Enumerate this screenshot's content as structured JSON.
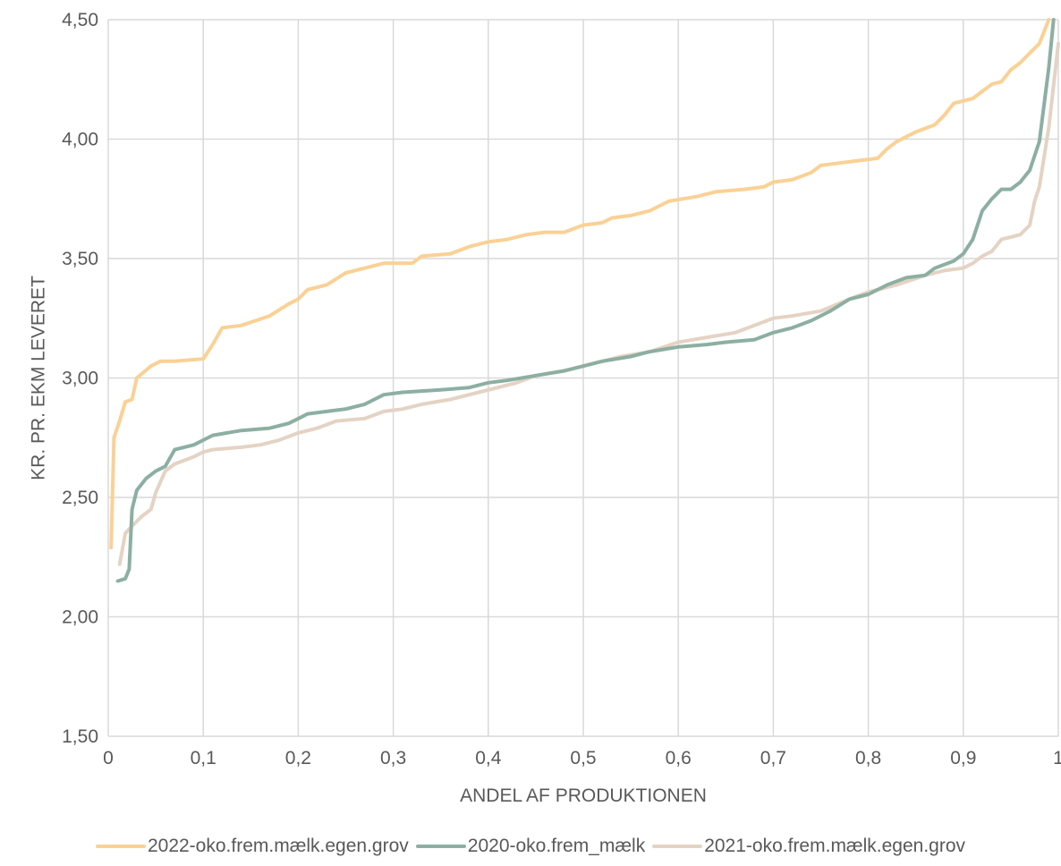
{
  "chart_data": {
    "type": "line",
    "title": "",
    "xlabel": "ANDEL AF PRODUKTIONEN",
    "ylabel": "KR. PR. EKM LEVERET",
    "xlim": [
      0,
      1
    ],
    "ylim": [
      1.5,
      4.5
    ],
    "x_ticks": [
      "0",
      "0,1",
      "0,2",
      "0,3",
      "0,4",
      "0,5",
      "0,6",
      "0,7",
      "0,8",
      "0,9",
      "1"
    ],
    "y_ticks": [
      "1,50",
      "2,00",
      "2,50",
      "3,00",
      "3,50",
      "4,00",
      "4,50"
    ],
    "grid": true,
    "legend_position": "bottom",
    "series": [
      {
        "name": "2022-oko.frem.mælk.egen.grov",
        "color": "#FAD195",
        "points": [
          [
            0.003,
            2.29
          ],
          [
            0.006,
            2.75
          ],
          [
            0.012,
            2.82
          ],
          [
            0.018,
            2.9
          ],
          [
            0.025,
            2.91
          ],
          [
            0.03,
            3.0
          ],
          [
            0.045,
            3.05
          ],
          [
            0.055,
            3.07
          ],
          [
            0.07,
            3.07
          ],
          [
            0.1,
            3.08
          ],
          [
            0.11,
            3.14
          ],
          [
            0.12,
            3.21
          ],
          [
            0.14,
            3.22
          ],
          [
            0.17,
            3.26
          ],
          [
            0.19,
            3.31
          ],
          [
            0.2,
            3.33
          ],
          [
            0.21,
            3.37
          ],
          [
            0.23,
            3.39
          ],
          [
            0.25,
            3.44
          ],
          [
            0.27,
            3.46
          ],
          [
            0.29,
            3.48
          ],
          [
            0.32,
            3.48
          ],
          [
            0.33,
            3.51
          ],
          [
            0.36,
            3.52
          ],
          [
            0.38,
            3.55
          ],
          [
            0.4,
            3.57
          ],
          [
            0.42,
            3.58
          ],
          [
            0.44,
            3.6
          ],
          [
            0.46,
            3.61
          ],
          [
            0.48,
            3.61
          ],
          [
            0.5,
            3.64
          ],
          [
            0.52,
            3.65
          ],
          [
            0.53,
            3.67
          ],
          [
            0.55,
            3.68
          ],
          [
            0.57,
            3.7
          ],
          [
            0.59,
            3.74
          ],
          [
            0.62,
            3.76
          ],
          [
            0.64,
            3.78
          ],
          [
            0.67,
            3.79
          ],
          [
            0.69,
            3.8
          ],
          [
            0.7,
            3.82
          ],
          [
            0.72,
            3.83
          ],
          [
            0.74,
            3.86
          ],
          [
            0.75,
            3.89
          ],
          [
            0.77,
            3.9
          ],
          [
            0.79,
            3.91
          ],
          [
            0.81,
            3.92
          ],
          [
            0.82,
            3.96
          ],
          [
            0.83,
            3.99
          ],
          [
            0.85,
            4.03
          ],
          [
            0.87,
            4.06
          ],
          [
            0.88,
            4.1
          ],
          [
            0.89,
            4.15
          ],
          [
            0.91,
            4.17
          ],
          [
            0.92,
            4.2
          ],
          [
            0.93,
            4.23
          ],
          [
            0.94,
            4.24
          ],
          [
            0.95,
            4.29
          ],
          [
            0.96,
            4.32
          ],
          [
            0.97,
            4.36
          ],
          [
            0.98,
            4.4
          ],
          [
            0.99,
            4.5
          ]
        ]
      },
      {
        "name": "2020-oko.frem_mælk",
        "color": "#8CAFA2",
        "points": [
          [
            0.01,
            2.15
          ],
          [
            0.018,
            2.16
          ],
          [
            0.022,
            2.2
          ],
          [
            0.025,
            2.45
          ],
          [
            0.03,
            2.53
          ],
          [
            0.04,
            2.58
          ],
          [
            0.05,
            2.61
          ],
          [
            0.06,
            2.63
          ],
          [
            0.07,
            2.7
          ],
          [
            0.09,
            2.72
          ],
          [
            0.11,
            2.76
          ],
          [
            0.14,
            2.78
          ],
          [
            0.17,
            2.79
          ],
          [
            0.19,
            2.81
          ],
          [
            0.2,
            2.83
          ],
          [
            0.21,
            2.85
          ],
          [
            0.23,
            2.86
          ],
          [
            0.25,
            2.87
          ],
          [
            0.27,
            2.89
          ],
          [
            0.29,
            2.93
          ],
          [
            0.31,
            2.94
          ],
          [
            0.35,
            2.95
          ],
          [
            0.38,
            2.96
          ],
          [
            0.4,
            2.98
          ],
          [
            0.42,
            2.99
          ],
          [
            0.45,
            3.01
          ],
          [
            0.48,
            3.03
          ],
          [
            0.5,
            3.05
          ],
          [
            0.52,
            3.07
          ],
          [
            0.55,
            3.09
          ],
          [
            0.57,
            3.11
          ],
          [
            0.6,
            3.13
          ],
          [
            0.63,
            3.14
          ],
          [
            0.65,
            3.15
          ],
          [
            0.68,
            3.16
          ],
          [
            0.7,
            3.19
          ],
          [
            0.72,
            3.21
          ],
          [
            0.74,
            3.24
          ],
          [
            0.76,
            3.28
          ],
          [
            0.78,
            3.33
          ],
          [
            0.8,
            3.35
          ],
          [
            0.82,
            3.39
          ],
          [
            0.84,
            3.42
          ],
          [
            0.86,
            3.43
          ],
          [
            0.87,
            3.46
          ],
          [
            0.89,
            3.49
          ],
          [
            0.9,
            3.52
          ],
          [
            0.91,
            3.58
          ],
          [
            0.92,
            3.7
          ],
          [
            0.93,
            3.75
          ],
          [
            0.94,
            3.79
          ],
          [
            0.95,
            3.79
          ],
          [
            0.96,
            3.82
          ],
          [
            0.97,
            3.87
          ],
          [
            0.98,
            3.99
          ],
          [
            0.99,
            4.3
          ],
          [
            0.995,
            4.5
          ]
        ]
      },
      {
        "name": "2021-oko.frem.mælk.egen.grov",
        "color": "#E4D3C4",
        "points": [
          [
            0.012,
            2.22
          ],
          [
            0.018,
            2.35
          ],
          [
            0.025,
            2.38
          ],
          [
            0.035,
            2.42
          ],
          [
            0.045,
            2.45
          ],
          [
            0.05,
            2.52
          ],
          [
            0.06,
            2.61
          ],
          [
            0.07,
            2.64
          ],
          [
            0.09,
            2.67
          ],
          [
            0.1,
            2.69
          ],
          [
            0.11,
            2.7
          ],
          [
            0.14,
            2.71
          ],
          [
            0.16,
            2.72
          ],
          [
            0.18,
            2.74
          ],
          [
            0.2,
            2.77
          ],
          [
            0.22,
            2.79
          ],
          [
            0.24,
            2.82
          ],
          [
            0.27,
            2.83
          ],
          [
            0.29,
            2.86
          ],
          [
            0.31,
            2.87
          ],
          [
            0.33,
            2.89
          ],
          [
            0.36,
            2.91
          ],
          [
            0.39,
            2.94
          ],
          [
            0.41,
            2.96
          ],
          [
            0.43,
            2.98
          ],
          [
            0.45,
            3.01
          ],
          [
            0.48,
            3.03
          ],
          [
            0.51,
            3.06
          ],
          [
            0.54,
            3.09
          ],
          [
            0.57,
            3.11
          ],
          [
            0.6,
            3.15
          ],
          [
            0.63,
            3.17
          ],
          [
            0.66,
            3.19
          ],
          [
            0.68,
            3.22
          ],
          [
            0.7,
            3.25
          ],
          [
            0.72,
            3.26
          ],
          [
            0.75,
            3.28
          ],
          [
            0.78,
            3.33
          ],
          [
            0.8,
            3.36
          ],
          [
            0.83,
            3.39
          ],
          [
            0.86,
            3.43
          ],
          [
            0.88,
            3.45
          ],
          [
            0.9,
            3.46
          ],
          [
            0.91,
            3.48
          ],
          [
            0.92,
            3.51
          ],
          [
            0.93,
            3.53
          ],
          [
            0.94,
            3.58
          ],
          [
            0.95,
            3.59
          ],
          [
            0.96,
            3.6
          ],
          [
            0.97,
            3.64
          ],
          [
            0.975,
            3.74
          ],
          [
            0.98,
            3.8
          ],
          [
            0.99,
            4.05
          ],
          [
            1.0,
            4.4
          ]
        ]
      }
    ]
  }
}
